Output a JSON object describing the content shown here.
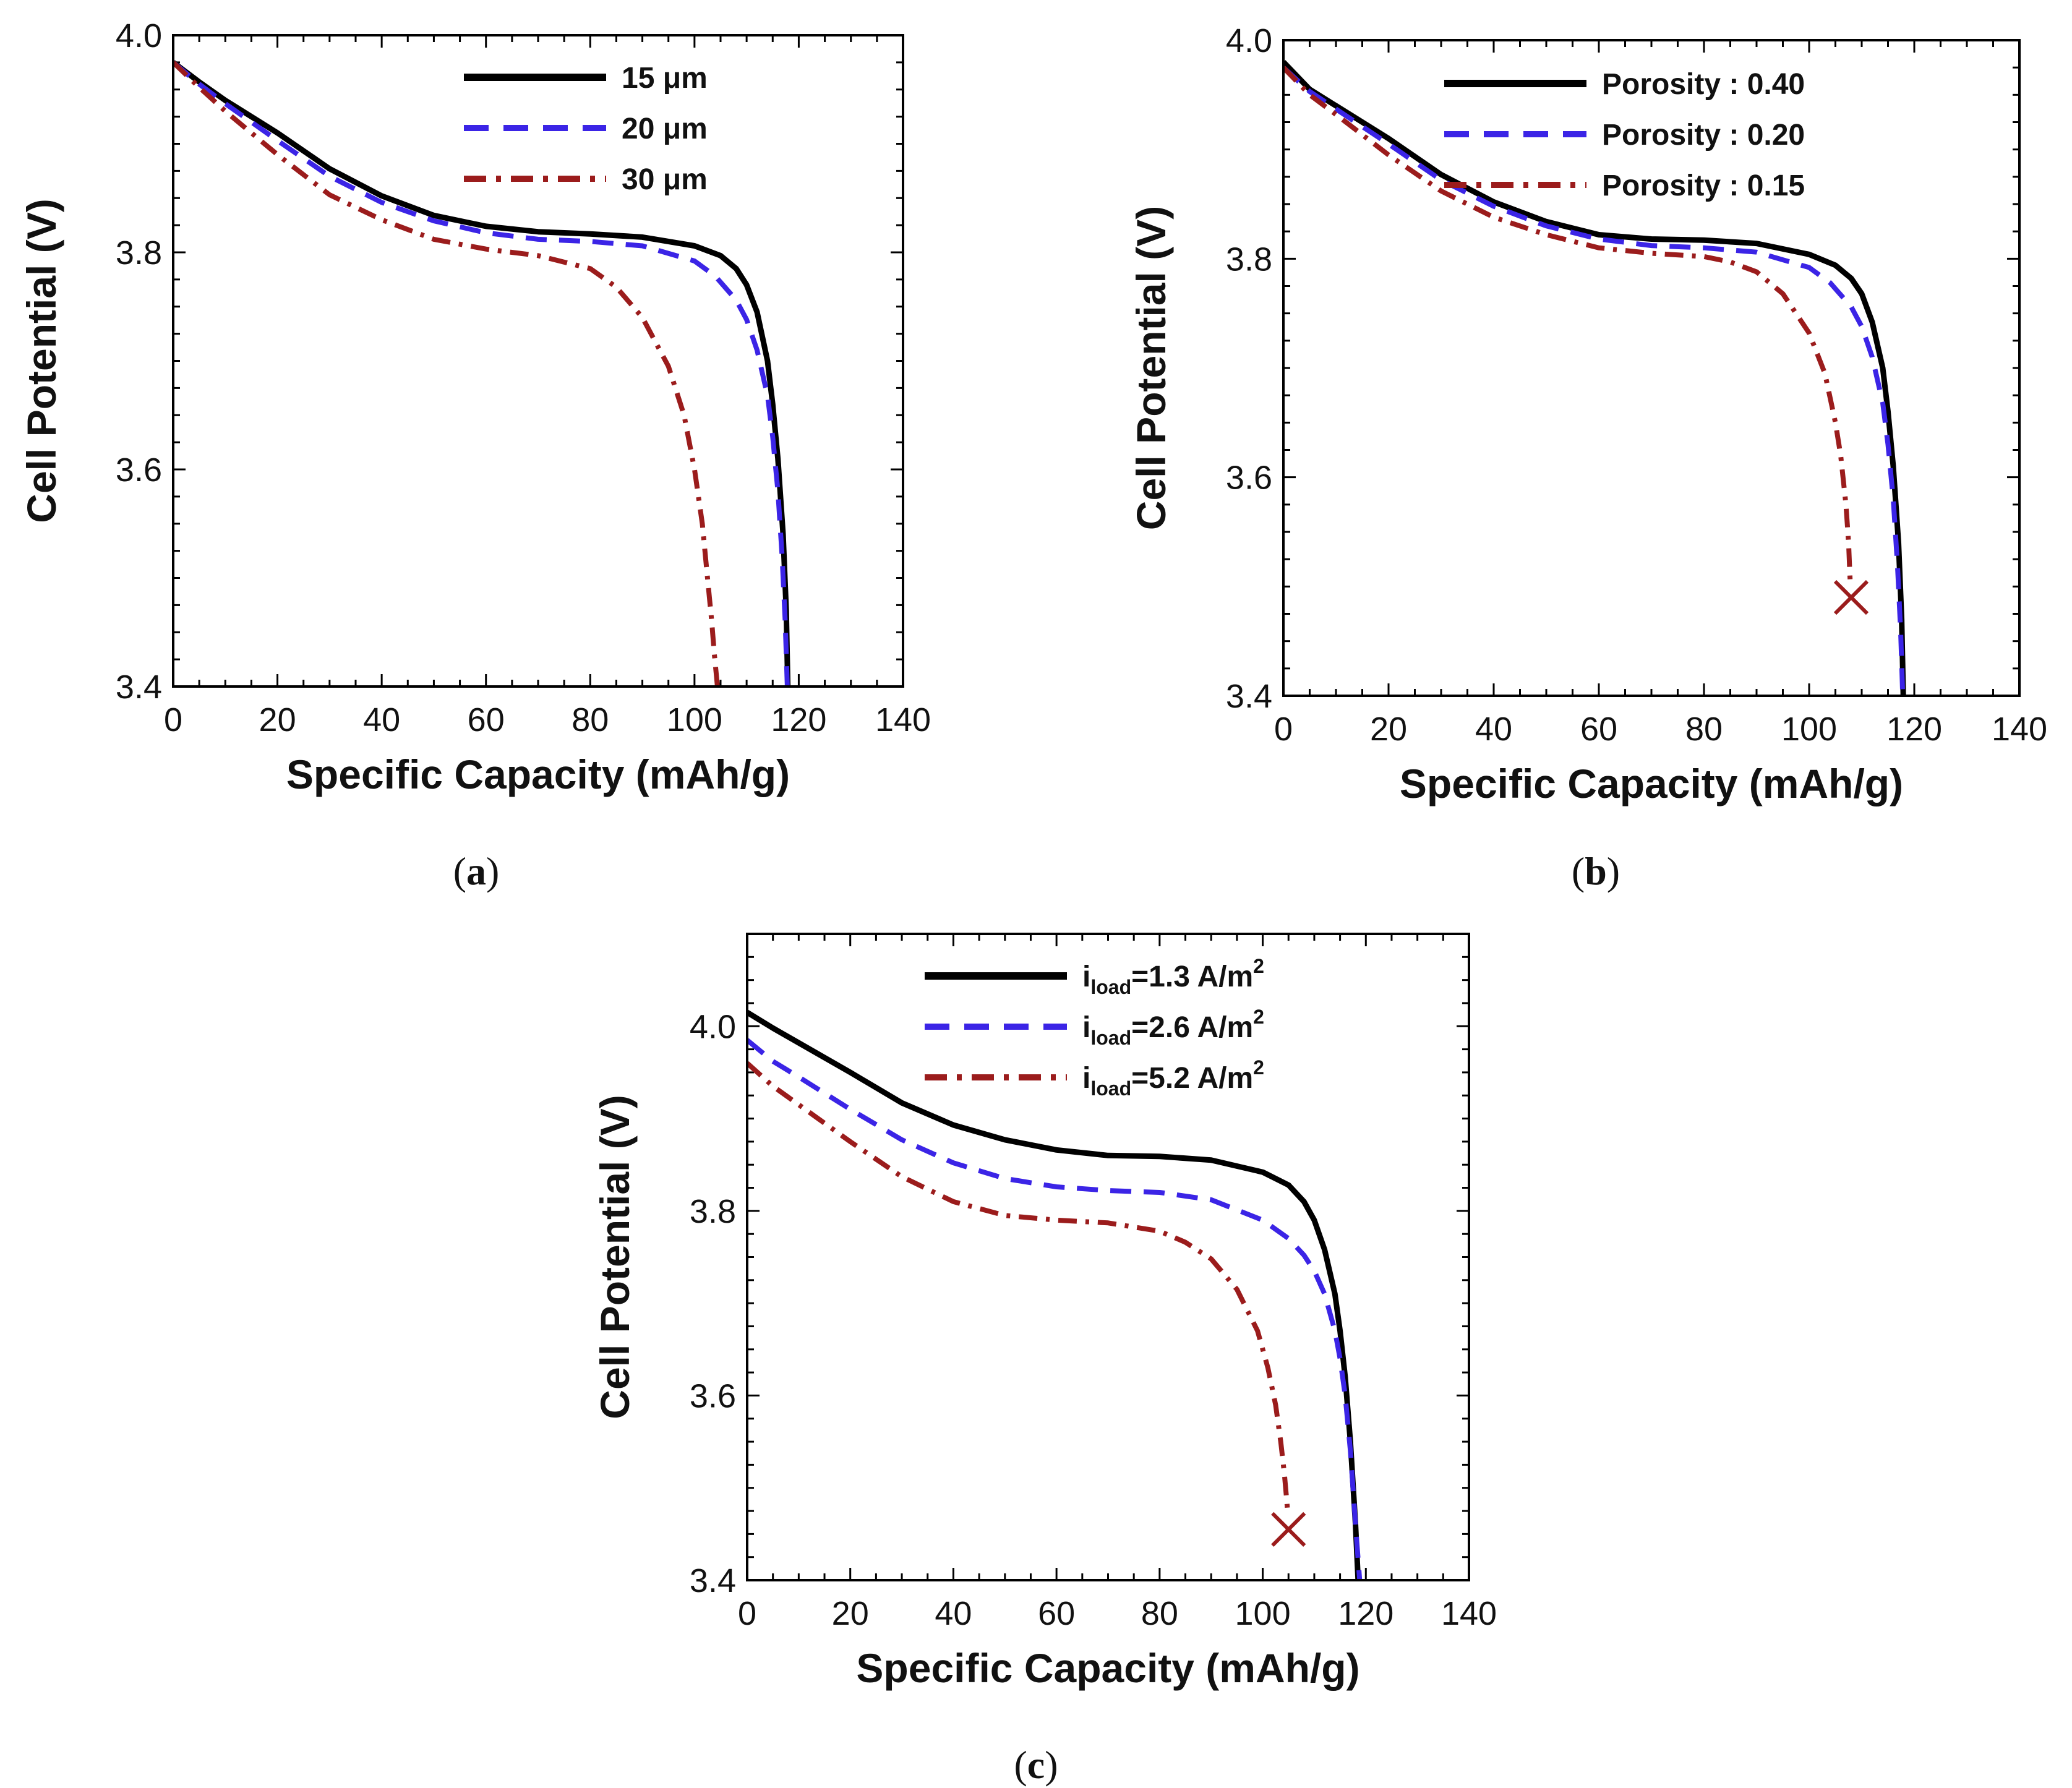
{
  "chart_data": [
    {
      "type": "line",
      "panel": "a",
      "caption_letter": "a",
      "xlabel": "Specific Capacity (mAh/g)",
      "ylabel": "Cell Potential (V)",
      "xlim": [
        0,
        140
      ],
      "ylim": [
        3.4,
        4.0
      ],
      "xticks": [
        0,
        20,
        40,
        60,
        80,
        100,
        120,
        140
      ],
      "yticks": [
        3.4,
        3.6,
        3.8,
        4.0
      ],
      "legend_position": "top-right",
      "series": [
        {
          "name": "15 μm",
          "style": "solid",
          "color": "#000000",
          "x": [
            0,
            5,
            10,
            20,
            30,
            40,
            50,
            60,
            70,
            80,
            90,
            100,
            105,
            108,
            110,
            112,
            114,
            115,
            116,
            117,
            117.6,
            117.9
          ],
          "y": [
            3.975,
            3.957,
            3.94,
            3.91,
            3.877,
            3.852,
            3.834,
            3.824,
            3.819,
            3.817,
            3.814,
            3.806,
            3.797,
            3.785,
            3.77,
            3.745,
            3.7,
            3.66,
            3.61,
            3.54,
            3.47,
            3.4
          ]
        },
        {
          "name": "20 μm",
          "style": "dashed",
          "color": "#3b24e6",
          "x": [
            0,
            5,
            10,
            20,
            30,
            40,
            50,
            60,
            70,
            80,
            90,
            100,
            104,
            108,
            110,
            112,
            114,
            115,
            116,
            116.8,
            117.4,
            117.8
          ],
          "y": [
            3.975,
            3.955,
            3.937,
            3.903,
            3.87,
            3.846,
            3.829,
            3.818,
            3.812,
            3.81,
            3.806,
            3.792,
            3.778,
            3.756,
            3.738,
            3.71,
            3.668,
            3.63,
            3.58,
            3.52,
            3.46,
            3.4
          ]
        },
        {
          "name": "30 μm",
          "style": "dashdot",
          "color": "#9b1c1c",
          "x": [
            0,
            5,
            10,
            20,
            30,
            40,
            50,
            60,
            70,
            80,
            85,
            90,
            95,
            98,
            100,
            101.5,
            102.5,
            103.3,
            103.8,
            104.2,
            104.4
          ],
          "y": [
            3.975,
            3.952,
            3.93,
            3.89,
            3.853,
            3.83,
            3.812,
            3.803,
            3.797,
            3.785,
            3.768,
            3.74,
            3.695,
            3.65,
            3.6,
            3.55,
            3.5,
            3.46,
            3.43,
            3.41,
            3.4
          ]
        }
      ]
    },
    {
      "type": "line",
      "panel": "b",
      "caption_letter": "b",
      "xlabel": "Specific Capacity (mAh/g)",
      "ylabel": "Cell Potential (V)",
      "xlim": [
        0,
        140
      ],
      "ylim": [
        3.4,
        4.0
      ],
      "xticks": [
        0,
        20,
        40,
        60,
        80,
        100,
        120,
        140
      ],
      "yticks": [
        3.4,
        3.6,
        3.8,
        4.0
      ],
      "legend_position": "top-right",
      "end_marker": {
        "symbol": "×",
        "x": 108,
        "y": 3.49,
        "color": "#9b1c1c"
      },
      "series": [
        {
          "name": "Porosity : 0.40",
          "style": "solid",
          "color": "#000000",
          "x": [
            0,
            5,
            10,
            20,
            30,
            40,
            50,
            60,
            70,
            80,
            90,
            100,
            105,
            108,
            110,
            112,
            114,
            115,
            116,
            117,
            117.6,
            117.9
          ],
          "y": [
            3.98,
            3.955,
            3.94,
            3.91,
            3.877,
            3.852,
            3.834,
            3.822,
            3.818,
            3.817,
            3.814,
            3.804,
            3.794,
            3.782,
            3.768,
            3.742,
            3.7,
            3.66,
            3.61,
            3.54,
            3.47,
            3.4
          ]
        },
        {
          "name": "Porosity : 0.20",
          "style": "dashed",
          "color": "#3b24e6",
          "x": [
            0,
            5,
            10,
            20,
            30,
            40,
            50,
            60,
            70,
            80,
            90,
            100,
            104,
            108,
            110,
            112,
            114,
            115,
            116,
            116.8,
            117.4,
            117.8
          ],
          "y": [
            3.975,
            3.953,
            3.937,
            3.905,
            3.872,
            3.848,
            3.83,
            3.818,
            3.812,
            3.81,
            3.806,
            3.792,
            3.778,
            3.756,
            3.738,
            3.71,
            3.668,
            3.63,
            3.58,
            3.52,
            3.46,
            3.4
          ]
        },
        {
          "name": "Porosity : 0.15",
          "style": "dashdot",
          "color": "#9b1c1c",
          "x": [
            0,
            5,
            10,
            20,
            30,
            40,
            50,
            60,
            70,
            80,
            85,
            90,
            95,
            100,
            103,
            105,
            106,
            107,
            107.5,
            107.8
          ],
          "y": [
            3.975,
            3.95,
            3.932,
            3.895,
            3.862,
            3.838,
            3.822,
            3.81,
            3.805,
            3.802,
            3.797,
            3.788,
            3.768,
            3.732,
            3.695,
            3.65,
            3.62,
            3.575,
            3.54,
            3.505
          ]
        }
      ]
    },
    {
      "type": "line",
      "panel": "c",
      "caption_letter": "c",
      "xlabel": "Specific Capacity (mAh/g)",
      "ylabel": "Cell Potential (V)",
      "xlim": [
        0,
        140
      ],
      "ylim": [
        3.4,
        4.1
      ],
      "xticks": [
        0,
        20,
        40,
        60,
        80,
        100,
        120,
        140
      ],
      "yticks": [
        3.4,
        3.6,
        3.8,
        4.0
      ],
      "legend_position": "top-right",
      "end_marker": {
        "symbol": "×",
        "x": 105,
        "y": 3.455,
        "color": "#9b1c1c"
      },
      "series": [
        {
          "name_main": "i",
          "name_sub": "load",
          "name_rest": "=1.3 A/m",
          "name_sup": "2",
          "style": "solid",
          "color": "#000000",
          "x": [
            0,
            5,
            10,
            20,
            30,
            40,
            50,
            60,
            70,
            80,
            90,
            100,
            105,
            108,
            110,
            112,
            114,
            115,
            116,
            117,
            118,
            118.5
          ],
          "y": [
            4.015,
            3.998,
            3.982,
            3.95,
            3.917,
            3.893,
            3.877,
            3.866,
            3.86,
            3.859,
            3.855,
            3.842,
            3.828,
            3.81,
            3.79,
            3.758,
            3.71,
            3.67,
            3.62,
            3.55,
            3.46,
            3.4
          ]
        },
        {
          "name_main": "i",
          "name_sub": "load",
          "name_rest": "=2.6 A/m",
          "name_sup": "2",
          "style": "dashed",
          "color": "#3b24e6",
          "x": [
            0,
            5,
            10,
            20,
            30,
            40,
            50,
            60,
            70,
            80,
            90,
            100,
            105,
            108,
            110,
            112,
            114,
            115,
            116,
            117,
            118,
            118.8
          ],
          "y": [
            3.985,
            3.962,
            3.945,
            3.91,
            3.877,
            3.852,
            3.835,
            3.826,
            3.822,
            3.82,
            3.812,
            3.79,
            3.77,
            3.752,
            3.735,
            3.71,
            3.67,
            3.64,
            3.6,
            3.54,
            3.46,
            3.4
          ]
        },
        {
          "name_main": "i",
          "name_sub": "load",
          "name_rest": "=5.2 A/m",
          "name_sup": "2",
          "style": "dashdot",
          "color": "#9b1c1c",
          "x": [
            0,
            5,
            10,
            20,
            30,
            40,
            50,
            60,
            70,
            80,
            85,
            90,
            95,
            99,
            101,
            102.5,
            103.5,
            104.2,
            104.6,
            104.9
          ],
          "y": [
            3.96,
            3.935,
            3.915,
            3.875,
            3.837,
            3.81,
            3.795,
            3.79,
            3.787,
            3.778,
            3.766,
            3.748,
            3.715,
            3.67,
            3.63,
            3.59,
            3.55,
            3.515,
            3.49,
            3.47
          ]
        }
      ]
    }
  ]
}
